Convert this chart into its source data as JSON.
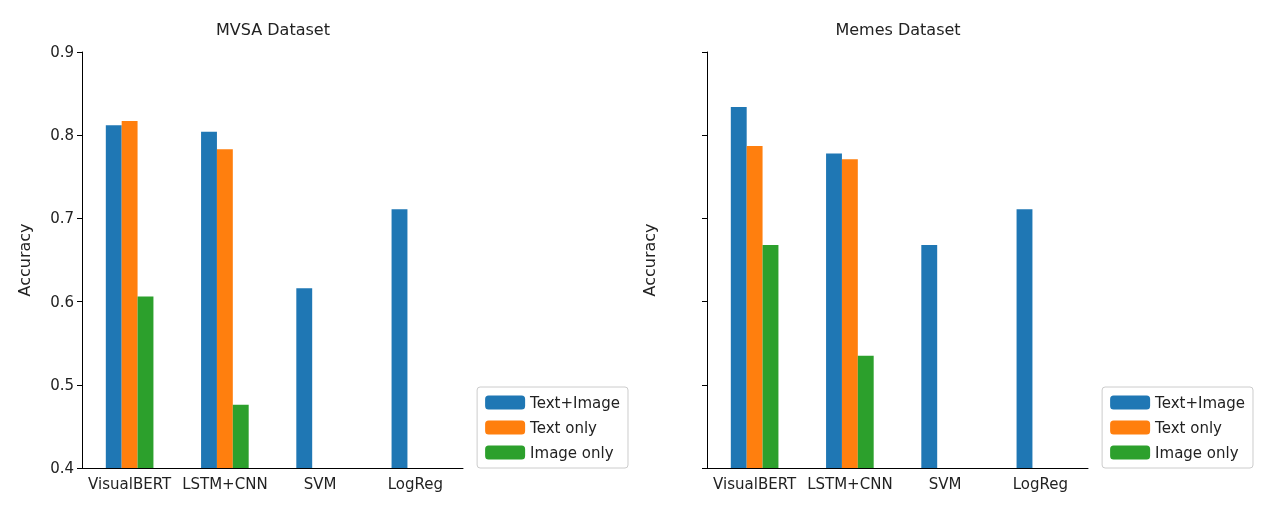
{
  "chart_data": [
    {
      "type": "bar",
      "title": "MVSA Dataset",
      "ylabel": "Accuracy",
      "categories": [
        "VisualBERT",
        "LSTM+CNN",
        "SVM",
        "LogReg"
      ],
      "ylim": [
        0.4,
        0.9
      ],
      "yticks": [
        0.4,
        0.5,
        0.6,
        0.7,
        0.8,
        0.9
      ],
      "grid": false,
      "legend": "bottom right",
      "series": [
        {
          "name": "Text+Image",
          "color": "#1f77b4",
          "values": [
            0.812,
            0.804,
            0.616,
            0.711
          ]
        },
        {
          "name": "Text only",
          "color": "#ff7f0e",
          "values": [
            0.817,
            0.783,
            null,
            null
          ]
        },
        {
          "name": "Image only",
          "color": "#2ca02c",
          "values": [
            0.606,
            0.476,
            null,
            null
          ]
        }
      ]
    },
    {
      "type": "bar",
      "title": "Memes Dataset",
      "ylabel": "Accuracy",
      "categories": [
        "VisualBERT",
        "LSTM+CNN",
        "SVM",
        "LogReg"
      ],
      "ylim": [
        0.4,
        0.9
      ],
      "yticks": [
        0.4,
        0.5,
        0.6,
        0.7,
        0.8,
        0.9
      ],
      "grid": false,
      "legend": "bottom right",
      "tick_labels": "x",
      "series": [
        {
          "name": "Text+Image",
          "color": "#1f77b4",
          "values": [
            0.834,
            0.778,
            0.668,
            0.711
          ]
        },
        {
          "name": "Text only",
          "color": "#ff7f0e",
          "values": [
            0.787,
            0.771,
            null,
            null
          ]
        },
        {
          "name": "Image only",
          "color": "#2ca02c",
          "values": [
            0.668,
            0.535,
            null,
            null
          ]
        }
      ]
    }
  ]
}
